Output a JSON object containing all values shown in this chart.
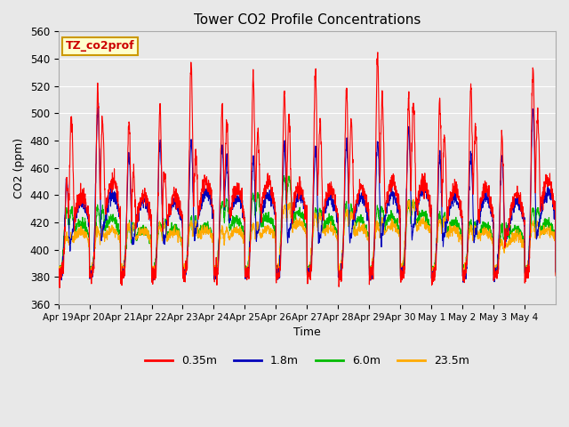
{
  "title": "Tower CO2 Profile Concentrations",
  "xlabel": "Time",
  "ylabel": "CO2 (ppm)",
  "ylim": [
    360,
    560
  ],
  "yticks": [
    360,
    380,
    400,
    420,
    440,
    460,
    480,
    500,
    520,
    540,
    560
  ],
  "series_labels": [
    "0.35m",
    "1.8m",
    "6.0m",
    "23.5m"
  ],
  "series_colors": [
    "#ff0000",
    "#0000bb",
    "#00bb00",
    "#ffaa00"
  ],
  "xtick_labels": [
    "Apr 19",
    "Apr 20",
    "Apr 21",
    "Apr 22",
    "Apr 23",
    "Apr 24",
    "Apr 25",
    "Apr 26",
    "Apr 27",
    "Apr 28",
    "Apr 29",
    "Apr 30",
    "May 1",
    "May 2",
    "May 3",
    "May 4"
  ],
  "annotation_text": "TZ_co2prof",
  "annotation_color": "#cc0000",
  "annotation_bg": "#ffffcc",
  "annotation_border": "#cc9900",
  "plot_bg_color": "#e8e8e8",
  "grid_color": "#ffffff",
  "n_days": 16,
  "pts_per_day": 144,
  "base_co2": 378,
  "figsize": [
    6.4,
    4.8
  ],
  "dpi": 100
}
